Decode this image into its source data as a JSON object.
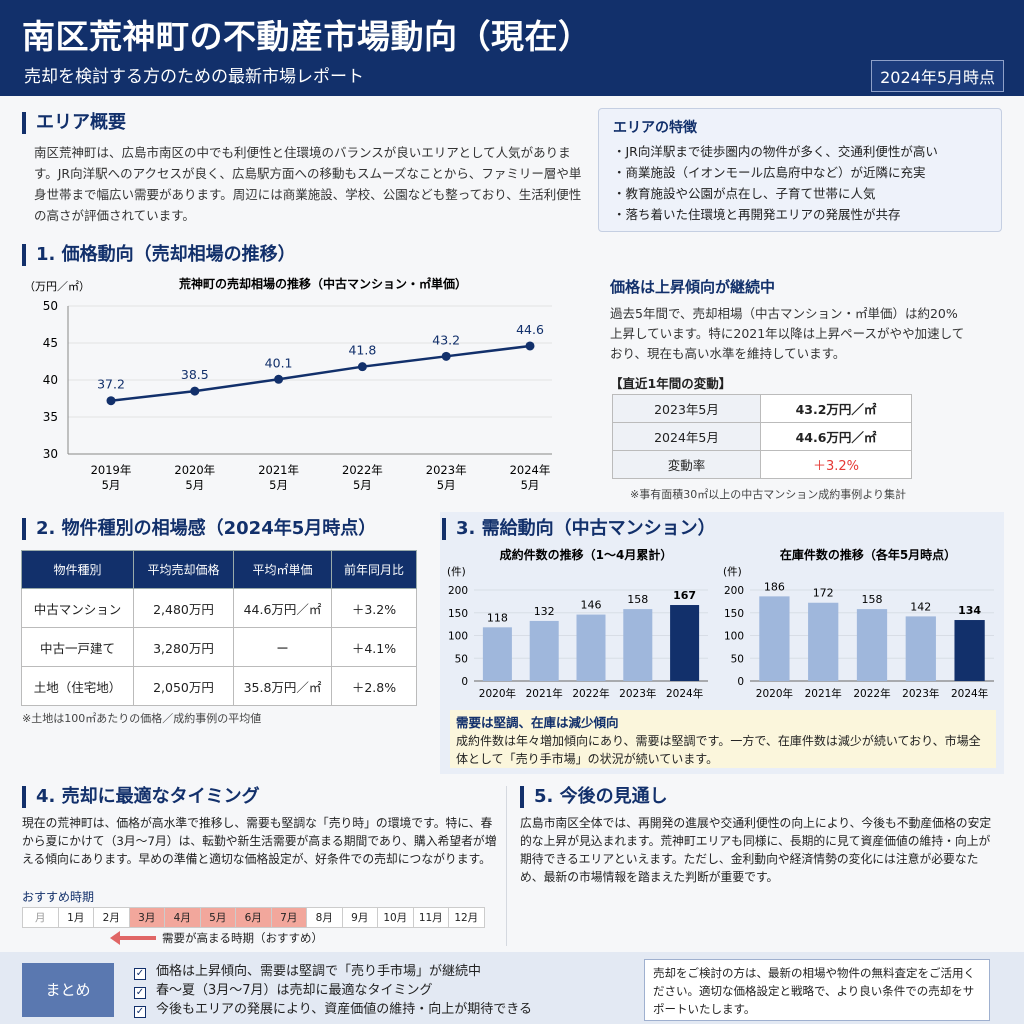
{
  "header": {
    "title": "南区荒神町の不動産市場動向（現在）",
    "subtitle": "売却を検討する方のための最新市場レポート",
    "date": "2024年5月時点"
  },
  "overview": {
    "title": "エリア概要",
    "body": "南区荒神町は、広島市南区の中でも利便性と住環境のバランスが良いエリアとして人気があります。JR向洋駅へのアクセスが良く、広島駅方面への移動もスムーズなことから、ファミリー層や単身世帯まで幅広い需要があります。周辺には商業施設、学校、公園なども整っており、生活利便性の高さが評価されています。"
  },
  "features": {
    "title": "エリアの特徴",
    "items": [
      "・JR向洋駅まで徒歩圏内の物件が多く、交通利便性が高い",
      "・商業施設（イオンモール広島府中など）が近隣に充実",
      "・教育施設や公園が点在し、子育て世帯に人気",
      "・落ち着いた住環境と再開発エリアの発展性が共存"
    ]
  },
  "price_trend": {
    "section_title": "1. 価格動向（売却相場の推移）",
    "chart_title": "荒神町の売却相場の推移（中古マンション・㎡単価）",
    "unit": "（万円／㎡）",
    "side_title": "価格は上昇傾向が継続中",
    "side_body": "過去5年間で、売却相場（中古マンション・㎡単価）は約20%上昇しています。特に2021年以降は上昇ペースがやや加速しており、現在も高い水準を維持しています。",
    "change_title": "【直近1年間の変動】",
    "change_rows": [
      {
        "label": "2023年5月",
        "value": "43.2万円／㎡"
      },
      {
        "label": "2024年5月",
        "value": "44.6万円／㎡"
      },
      {
        "label": "変動率",
        "value": "＋3.2%"
      }
    ],
    "note": "※事有面積30㎡以上の中古マンション成約事例より集計",
    "accent_color": "#e53935"
  },
  "types": {
    "section_title": "2. 物件種別の相場感（2024年5月時点）",
    "headers": [
      "物件種別",
      "平均売却価格",
      "平均㎡単価",
      "前年同月比"
    ],
    "rows": [
      [
        "中古マンション",
        "2,480万円",
        "44.6万円／㎡",
        "＋3.2%"
      ],
      [
        "中古一戸建て",
        "3,280万円",
        "ー",
        "＋4.1%"
      ],
      [
        "土地（住宅地）",
        "2,050万円",
        "35.8万円／㎡",
        "＋2.8%"
      ]
    ],
    "note": "※土地は100㎡あたりの価格／成約事例の平均値"
  },
  "supply": {
    "section_title": "3. 需給動向（中古マンション）",
    "summary_title": "需要は堅調、在庫は減少傾向",
    "summary_body": "成約件数は年々増加傾向にあり、需要は堅調です。一方で、在庫件数は減少が続いており、市場全体として「売り手市場」の状況が続いています。"
  },
  "timing": {
    "section_title": "4. 売却に最適なタイミング",
    "body": "現在の荒神町は、価格が高水準で推移し、需要も堅調な「売り時」の環境です。特に、春から夏にかけて（3月〜7月）は、転勤や新生活需要が高まる期間であり、購入希望者が増える傾向にあります。早めの準備と適切な価格設定が、好条件での売却につながります。",
    "calendar_title": "おすすめ時期",
    "calendar_label": "月",
    "months": [
      "1月",
      "2月",
      "3月",
      "4月",
      "5月",
      "6月",
      "7月",
      "8月",
      "9月",
      "10月",
      "11月",
      "12月"
    ],
    "highlight": [
      3,
      4,
      5,
      6,
      7
    ],
    "legend": "需要が高まる時期（おすすめ）"
  },
  "outlook": {
    "section_title": "5. 今後の見通し",
    "body": "広島市南区全体では、再開発の進展や交通利便性の向上により、今後も不動産価格の安定的な上昇が見込まれます。荒神町エリアも同様に、長期的に見て資産価値の維持・向上が期待できるエリアといえます。ただし、金利動向や経済情勢の変化には注意が必要なため、最新の市場情報を踏まえた判断が重要です。"
  },
  "summary": {
    "label": "まとめ",
    "items": [
      "価格は上昇傾向、需要は堅調で「売り手市場」が継続中",
      "春〜夏（3月〜7月）は売却に最適なタイミング",
      "今後もエリアの発展により、資産価値の維持・向上が期待できる"
    ],
    "cta": "売却をご検討の方は、最新の相場や物件の無料査定をご活用ください。適切な価格設定と戦略で、より良い条件での売却をサポートいたします。"
  },
  "chart_data": [
    {
      "type": "line",
      "title": "荒神町の売却相場の推移（中古マンション・㎡単価）",
      "ylabel": "（万円／㎡）",
      "categories": [
        "2019年\n5月",
        "2020年\n5月",
        "2021年\n5月",
        "2022年\n5月",
        "2023年\n5月",
        "2024年\n5月"
      ],
      "values": [
        37.2,
        38.5,
        40.1,
        41.8,
        43.2,
        44.6
      ],
      "ylim": [
        30,
        50
      ],
      "yticks": [
        30,
        35,
        40,
        45,
        50
      ],
      "color": "#12306b"
    },
    {
      "type": "bar",
      "title": "成約件数の推移（1〜4月累計）",
      "ylabel": "(件)",
      "categories": [
        "2020年",
        "2021年",
        "2022年",
        "2023年",
        "2024年"
      ],
      "values": [
        118,
        132,
        146,
        158,
        167
      ],
      "ylim": [
        0,
        200
      ],
      "yticks": [
        0,
        50,
        100,
        150,
        200
      ],
      "colors": [
        "#9fb7dc",
        "#9fb7dc",
        "#9fb7dc",
        "#9fb7dc",
        "#12306b"
      ]
    },
    {
      "type": "bar",
      "title": "在庫件数の推移（各年5月時点）",
      "ylabel": "(件)",
      "categories": [
        "2020年",
        "2021年",
        "2022年",
        "2023年",
        "2024年"
      ],
      "values": [
        186,
        172,
        158,
        142,
        134
      ],
      "ylim": [
        0,
        200
      ],
      "yticks": [
        0,
        50,
        100,
        150,
        200
      ],
      "colors": [
        "#9fb7dc",
        "#9fb7dc",
        "#9fb7dc",
        "#9fb7dc",
        "#12306b"
      ]
    }
  ]
}
